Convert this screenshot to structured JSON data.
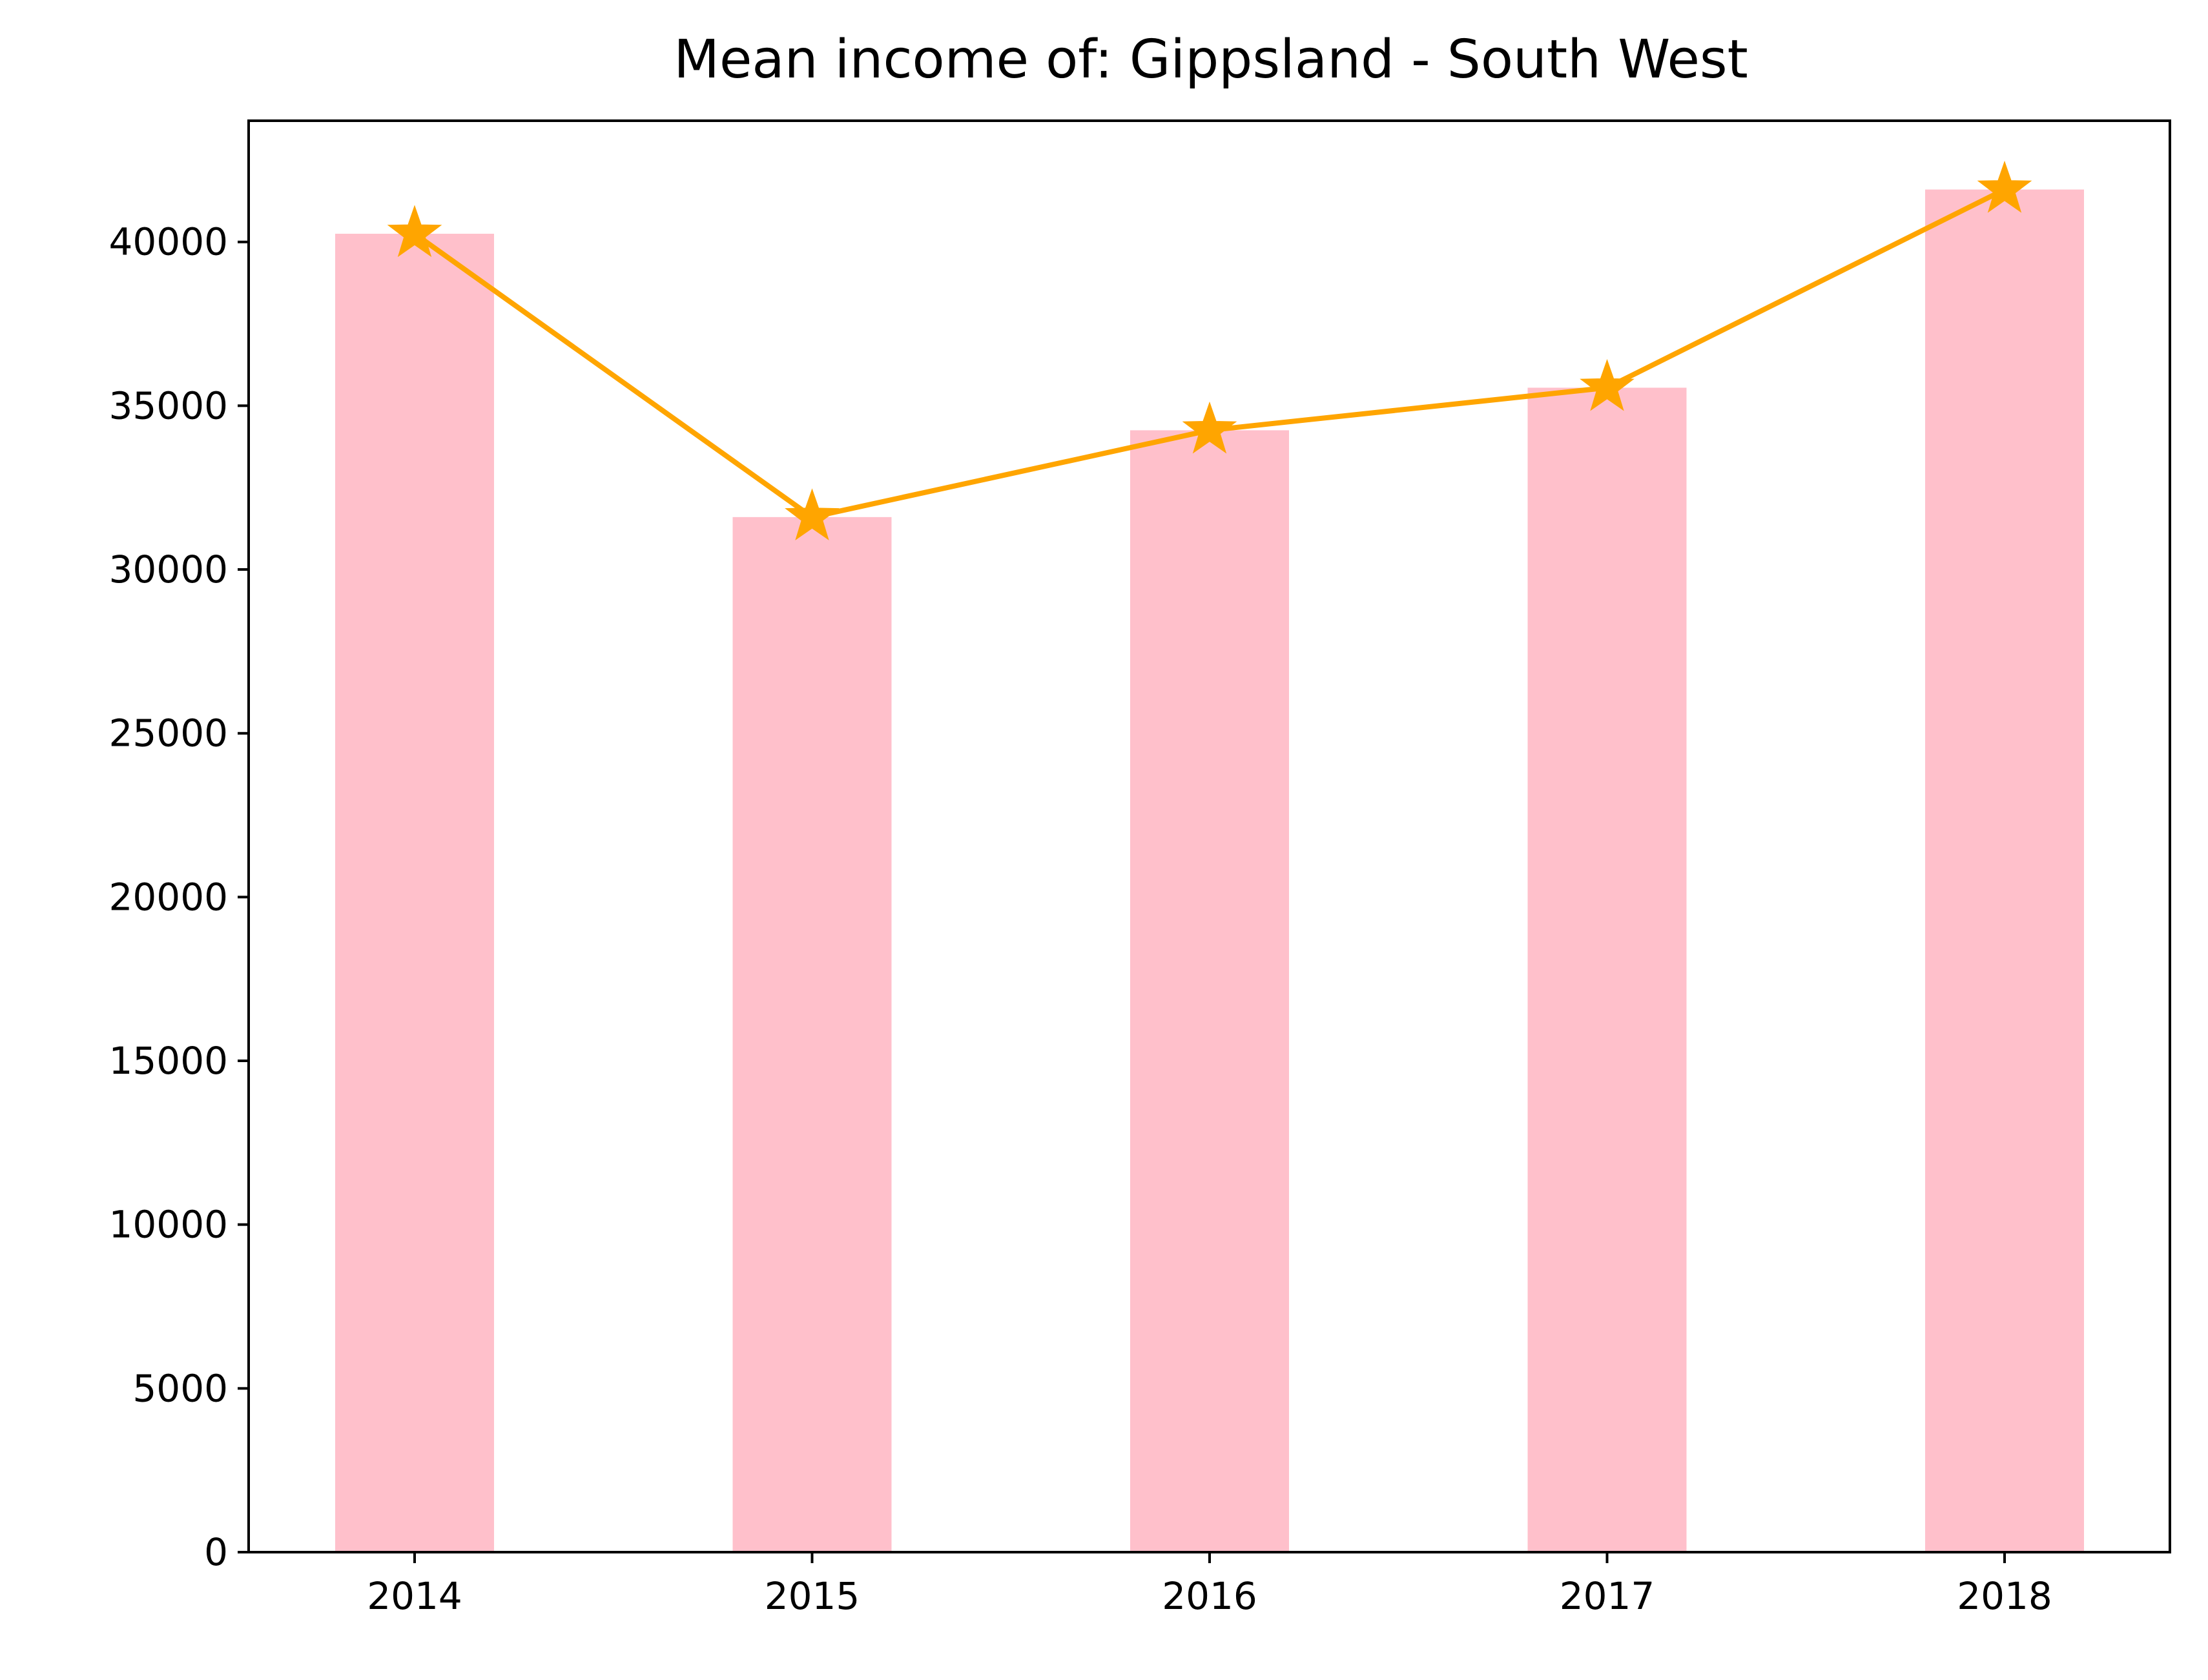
{
  "chart_data": {
    "type": "bar",
    "title": "Mean income of: Gippsland - South West",
    "xlabel": "",
    "ylabel": "",
    "categories": [
      "2014",
      "2015",
      "2016",
      "2017",
      "2018"
    ],
    "values": [
      40250,
      31600,
      34250,
      35550,
      41600
    ],
    "line_values": [
      40250,
      31600,
      34250,
      35550,
      41600
    ],
    "ylim": [
      0,
      43700
    ],
    "yticks": [
      0,
      5000,
      10000,
      15000,
      20000,
      25000,
      30000,
      35000,
      40000
    ],
    "ytick_labels": [
      "0",
      "5000",
      "10000",
      "15000",
      "20000",
      "25000",
      "30000",
      "35000",
      "40000"
    ],
    "grid": false,
    "legend": "none",
    "colors": {
      "bar": "#ffc0cb",
      "line": "#ffa500",
      "marker": "#ffa500"
    },
    "marker": "star-icon"
  }
}
